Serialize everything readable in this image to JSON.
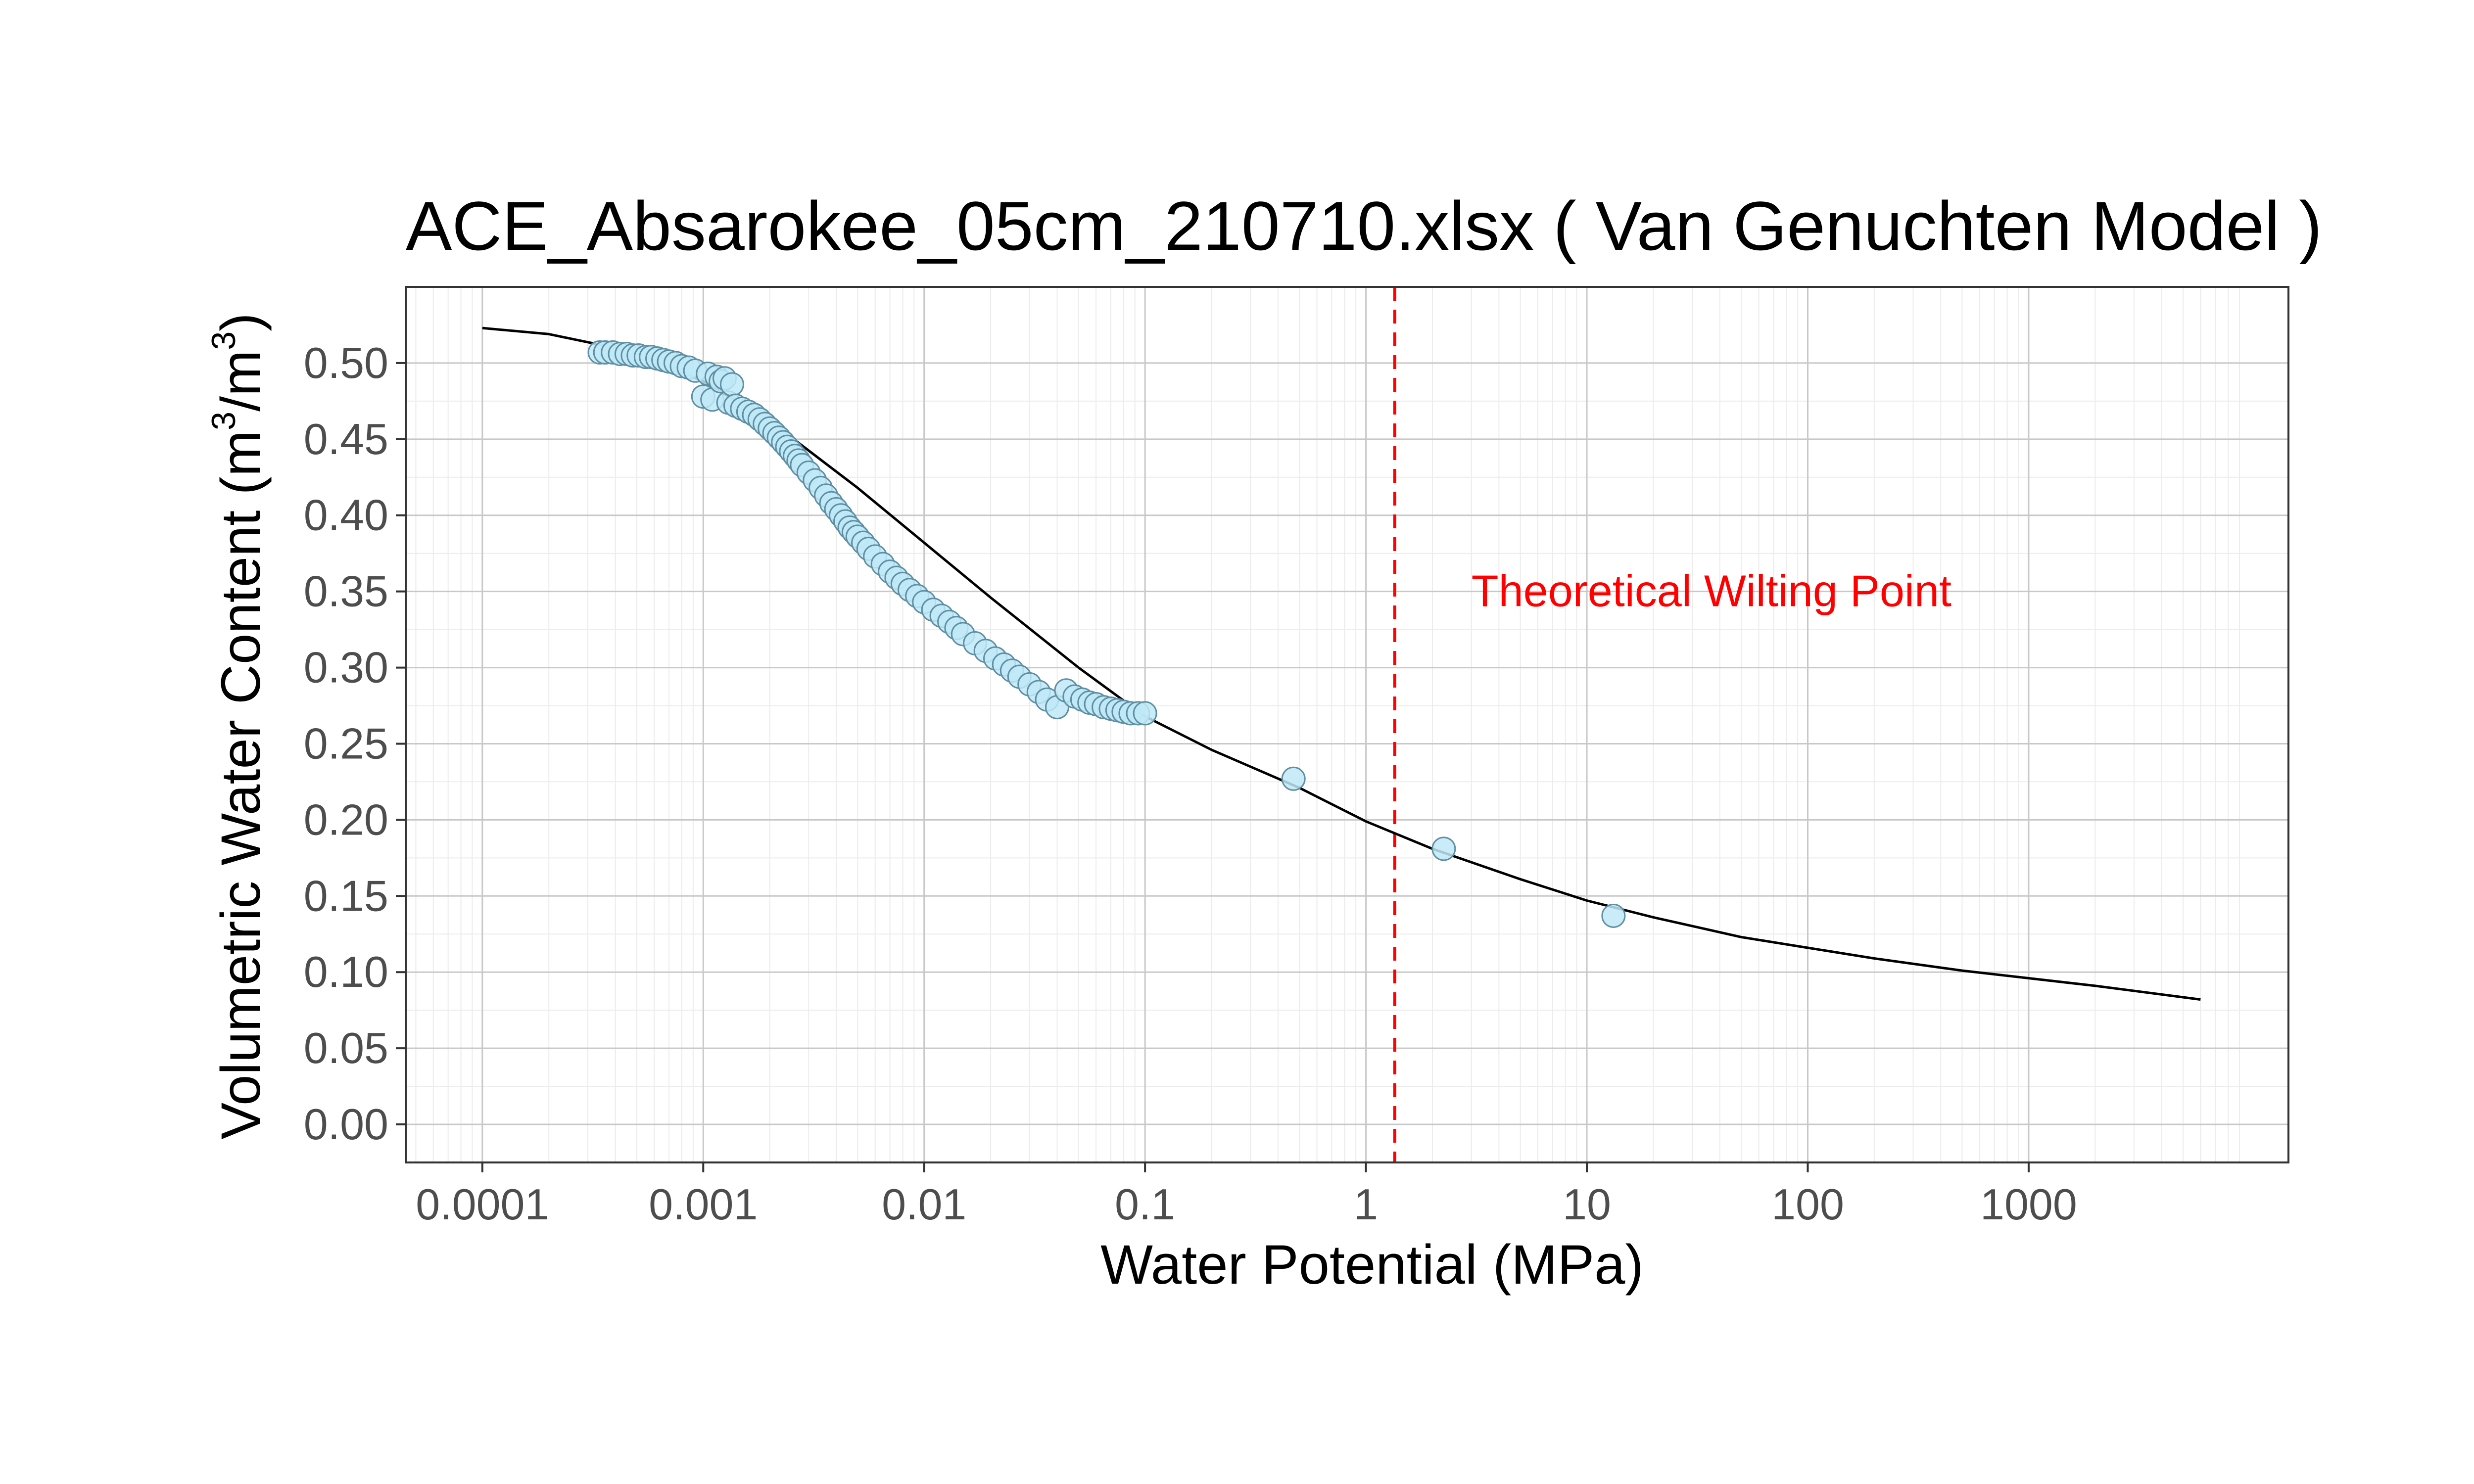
{
  "chart_data": {
    "type": "scatter",
    "title": "ACE_Absarokee_05cm_210710.xlsx ( Van Genuchten Model )",
    "xlabel": "Water Potential (MPa)",
    "ylabel": {
      "main": "Volumetric Water Content (m",
      "exp1": "3",
      "mid": "/m",
      "exp2": "3",
      "end": ")"
    },
    "x_scale": "log10",
    "xlim": [
      4.5e-05,
      15000
    ],
    "ylim": [
      -0.025,
      0.55
    ],
    "x_ticks": [
      0.0001,
      0.001,
      0.01,
      0.1,
      1,
      10,
      100,
      1000
    ],
    "x_tick_labels": [
      "0.0001",
      "0.001",
      "0.01",
      "0.1",
      "1",
      "10",
      "100",
      "1000"
    ],
    "y_ticks": [
      0,
      0.05,
      0.1,
      0.15,
      0.2,
      0.25,
      0.3,
      0.35,
      0.4,
      0.45,
      0.5
    ],
    "y_tick_labels": [
      "0.00",
      "0.05",
      "0.10",
      "0.15",
      "0.20",
      "0.25",
      "0.30",
      "0.35",
      "0.40",
      "0.45",
      "0.50"
    ],
    "grid": true,
    "colors": {
      "point_fill": "#bfe9f7",
      "point_stroke": "#5e8fa3",
      "fit_line": "#000000",
      "wilting_line": "#ff0000",
      "grid_major": "#c8c8c8",
      "grid_minor": "#ececec"
    },
    "series": [
      {
        "type": "scatter",
        "x": [
          0.00034,
          0.00036,
          0.00039,
          0.00042,
          0.00045,
          0.00048,
          0.00051,
          0.00055,
          0.00058,
          0.00062,
          0.00066,
          0.0007,
          0.00075,
          0.0008,
          0.00086,
          0.00092,
          0.001,
          0.00105,
          0.0011,
          0.00115,
          0.0012,
          0.00125,
          0.0013,
          0.00135,
          0.0014,
          0.0015,
          0.0016,
          0.0017,
          0.0018,
          0.0019,
          0.002,
          0.0021,
          0.0022,
          0.0023,
          0.0024,
          0.0025,
          0.0026,
          0.0027,
          0.0028,
          0.003,
          0.0032,
          0.0034,
          0.0036,
          0.0038,
          0.004,
          0.0042,
          0.0044,
          0.0046,
          0.0048,
          0.005,
          0.0053,
          0.0056,
          0.006,
          0.0065,
          0.007,
          0.0075,
          0.008,
          0.0086,
          0.0093,
          0.01,
          0.011,
          0.012,
          0.013,
          0.014,
          0.015,
          0.017,
          0.019,
          0.021,
          0.023,
          0.025,
          0.027,
          0.03,
          0.033,
          0.036,
          0.04,
          0.044,
          0.048,
          0.052,
          0.056,
          0.06,
          0.065,
          0.07,
          0.075,
          0.08,
          0.086,
          0.093,
          0.1,
          0.47,
          2.25,
          13.2
        ],
        "y": [
          0.507,
          0.507,
          0.507,
          0.506,
          0.506,
          0.505,
          0.505,
          0.504,
          0.504,
          0.503,
          0.502,
          0.501,
          0.5,
          0.498,
          0.497,
          0.495,
          0.478,
          0.493,
          0.476,
          0.491,
          0.488,
          0.49,
          0.474,
          0.486,
          0.472,
          0.47,
          0.468,
          0.466,
          0.463,
          0.46,
          0.457,
          0.454,
          0.451,
          0.448,
          0.445,
          0.442,
          0.439,
          0.436,
          0.433,
          0.428,
          0.423,
          0.418,
          0.413,
          0.408,
          0.404,
          0.4,
          0.396,
          0.392,
          0.389,
          0.386,
          0.382,
          0.378,
          0.373,
          0.368,
          0.363,
          0.359,
          0.355,
          0.351,
          0.347,
          0.343,
          0.338,
          0.334,
          0.33,
          0.326,
          0.322,
          0.316,
          0.311,
          0.306,
          0.302,
          0.298,
          0.294,
          0.289,
          0.284,
          0.279,
          0.274,
          0.285,
          0.281,
          0.279,
          0.277,
          0.276,
          0.274,
          0.273,
          0.272,
          0.271,
          0.27,
          0.27,
          0.27,
          0.227,
          0.181,
          0.137
        ]
      },
      {
        "type": "line",
        "x": [
          0.0001,
          0.0002,
          0.0005,
          0.001,
          0.002,
          0.005,
          0.01,
          0.02,
          0.05,
          0.1,
          0.2,
          0.5,
          1,
          2,
          5,
          10,
          20,
          50,
          100,
          200,
          500,
          1000,
          2000,
          6000
        ],
        "y": [
          0.523,
          0.519,
          0.507,
          0.488,
          0.462,
          0.418,
          0.382,
          0.346,
          0.3,
          0.268,
          0.246,
          0.221,
          0.199,
          0.181,
          0.161,
          0.147,
          0.136,
          0.123,
          0.116,
          0.109,
          0.101,
          0.096,
          0.091,
          0.082
        ]
      }
    ],
    "reference_lines": [
      {
        "axis": "x",
        "value": 1.35,
        "style": "dashed"
      }
    ],
    "annotations": [
      {
        "text": "Theoretical Wilting Point",
        "x": 3,
        "y": 0.35,
        "color": "#ff0000"
      }
    ]
  }
}
